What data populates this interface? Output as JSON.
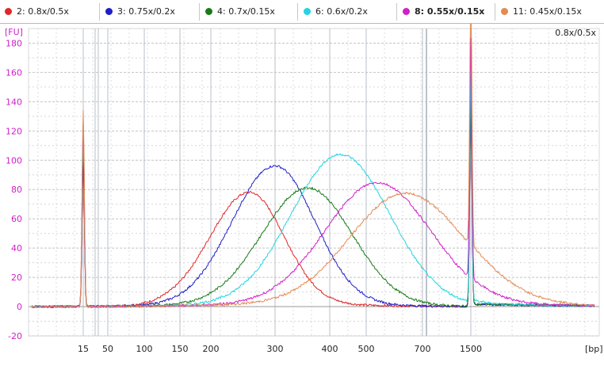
{
  "legend": [
    {
      "label": "2: 0.8x/0.5x",
      "color": "#e0262a",
      "bold": false
    },
    {
      "label": "3: 0.75x/0.2x",
      "color": "#1e1ec8",
      "bold": false
    },
    {
      "label": "4: 0.7x/0.15x",
      "color": "#1a7a1a",
      "bold": false
    },
    {
      "label": "6: 0.6x/0.2x",
      "color": "#22d4e0",
      "bold": false
    },
    {
      "label": "8: 0.55x/0.15x",
      "color": "#d020c8",
      "bold": true
    },
    {
      "label": "11: 0.45x/0.15x",
      "color": "#e48a52",
      "bold": false
    }
  ],
  "corner_label": "0.8x/0.5x",
  "chart_data": {
    "type": "line",
    "ylabel": "[FU]",
    "xlabel": "[bp]",
    "ylim": [
      -20,
      190
    ],
    "y_ticks": [
      -20,
      0,
      20,
      40,
      60,
      80,
      100,
      120,
      140,
      160,
      180
    ],
    "x_ticks": [
      "15",
      "50",
      "100",
      "150",
      "200",
      "300",
      "400",
      "500",
      "700",
      "1500"
    ],
    "grid": true,
    "legend_position": "top",
    "marker_peaks": [
      {
        "label": "15",
        "height": 135
      },
      {
        "label": "1500",
        "height": 178
      }
    ],
    "series": [
      {
        "name": "2: 0.8x/0.5x",
        "color": "#e0262a",
        "peak_bp": 260,
        "peak_fu": 77
      },
      {
        "name": "3: 0.75x/0.2x",
        "color": "#1e1ec8",
        "peak_bp": 300,
        "peak_fu": 95
      },
      {
        "name": "4: 0.7x/0.15x",
        "color": "#1a7a1a",
        "peak_bp": 360,
        "peak_fu": 80
      },
      {
        "name": "6: 0.6x/0.2x",
        "color": "#22d4e0",
        "peak_bp": 430,
        "peak_fu": 103
      },
      {
        "name": "8: 0.55x/0.15x",
        "color": "#d020c8",
        "peak_bp": 540,
        "peak_fu": 84
      },
      {
        "name": "11: 0.45x/0.15x",
        "color": "#e48a52",
        "peak_bp": 640,
        "peak_fu": 77
      }
    ]
  }
}
